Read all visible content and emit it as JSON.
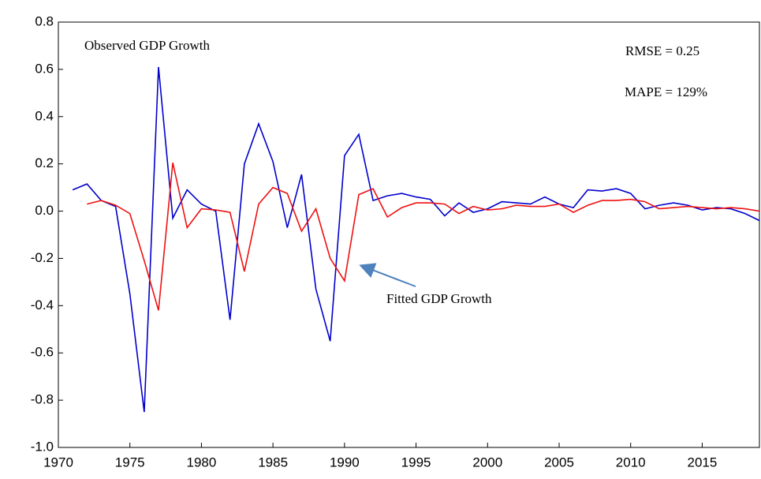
{
  "chart_data": {
    "type": "line",
    "annotations": [
      "Observed GDP Growth",
      "Fitted GDP Growth",
      "RMSE = 0.25",
      "MAPE = 129%"
    ],
    "x": [
      1971,
      1972,
      1973,
      1974,
      1975,
      1976,
      1977,
      1978,
      1979,
      1980,
      1981,
      1982,
      1983,
      1984,
      1985,
      1986,
      1987,
      1988,
      1989,
      1990,
      1991,
      1992,
      1993,
      1994,
      1995,
      1996,
      1997,
      1998,
      1999,
      2000,
      2001,
      2002,
      2003,
      2004,
      2005,
      2006,
      2007,
      2008,
      2009,
      2010,
      2011,
      2012,
      2013,
      2014,
      2015,
      2016,
      2017,
      2018,
      2019
    ],
    "series": [
      {
        "name": "Observed GDP Growth",
        "color": "#0000cc",
        "values": [
          0.09,
          0.115,
          0.045,
          0.02,
          -0.35,
          -0.85,
          0.61,
          -0.03,
          0.09,
          0.03,
          0.0,
          -0.46,
          0.2,
          0.37,
          0.21,
          -0.07,
          0.155,
          -0.33,
          -0.55,
          0.235,
          0.325,
          0.045,
          0.065,
          0.075,
          0.06,
          0.05,
          -0.02,
          0.035,
          -0.005,
          0.01,
          0.04,
          0.035,
          0.03,
          0.06,
          0.03,
          0.015,
          0.09,
          0.085,
          0.095,
          0.075,
          0.01,
          0.025,
          0.035,
          0.025,
          0.005,
          0.015,
          0.01,
          -0.01,
          -0.04
        ]
      },
      {
        "name": "Fitted GDP Growth",
        "color": "#ee1111",
        "values": [
          null,
          0.03,
          0.045,
          0.025,
          -0.01,
          -0.21,
          -0.42,
          0.205,
          -0.07,
          0.01,
          0.005,
          -0.005,
          -0.255,
          0.03,
          0.1,
          0.075,
          -0.085,
          0.01,
          -0.2,
          -0.295,
          0.07,
          0.095,
          -0.025,
          0.015,
          0.035,
          0.035,
          0.03,
          -0.01,
          0.02,
          0.005,
          0.01,
          0.025,
          0.02,
          0.02,
          0.03,
          -0.005,
          0.025,
          0.045,
          0.045,
          0.05,
          0.04,
          0.01,
          0.015,
          0.02,
          0.015,
          0.01,
          0.015,
          0.01,
          0.0
        ]
      }
    ],
    "xlim": [
      1970,
      2019
    ],
    "xticks": [
      1970,
      1975,
      1980,
      1985,
      1990,
      1995,
      2000,
      2005,
      2010,
      2015
    ],
    "ylim": [
      -1.0,
      0.8
    ],
    "yticks": [
      0.8,
      0.6,
      0.4,
      0.2,
      {
        "value": 0.0,
        "label": "0.0"
      },
      -0.2,
      -0.4,
      -0.6,
      -0.8,
      {
        "value": -1.0,
        "label": "-1.0"
      }
    ]
  }
}
